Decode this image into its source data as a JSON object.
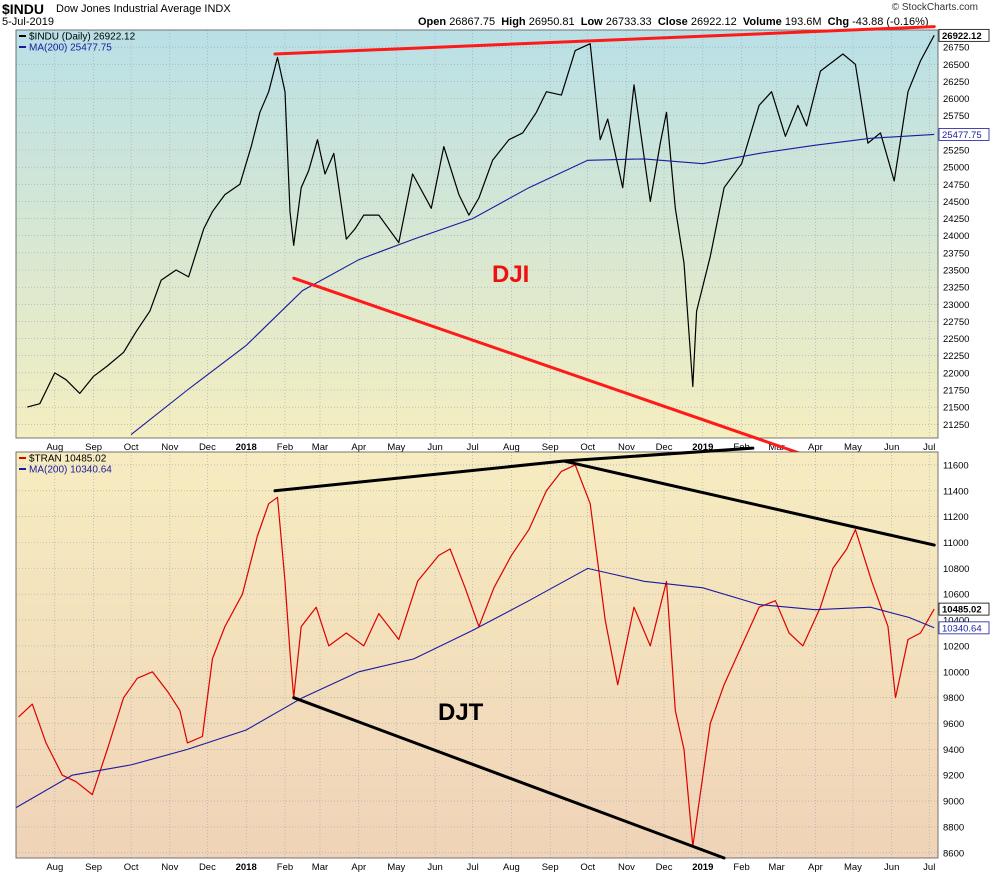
{
  "header": {
    "symbol": "$INDU",
    "name": "Dow Jones Industrial Average  INDX",
    "date": "5-Jul-2019",
    "open_label": "Open",
    "open": "26867.75",
    "high_label": "High",
    "high": "26950.81",
    "low_label": "Low",
    "low": "26733.33",
    "close_label": "Close",
    "close": "26922.12",
    "volume_label": "Volume",
    "volume": "193.6M",
    "chg_label": "Chg",
    "chg": "-43.88 (-0.16%)",
    "source": "© StockCharts.com"
  },
  "colors": {
    "price_top": "#000000",
    "price_bottom": "#dd0000",
    "ma": "#1a1aa0",
    "trend_top": "#ff1a1a",
    "trend_bottom": "#000000",
    "grid": "#9aa8b8"
  },
  "chart_data": [
    {
      "type": "line",
      "legend": [
        "$INDU (Daily) 26922.12",
        "MA(200) 25477.75"
      ],
      "annotation": "DJI",
      "last_value_label": "26922.12",
      "ma_value_label": "25477.75",
      "ylim": [
        21050,
        27000
      ],
      "yticks": [
        21250,
        21500,
        21750,
        22000,
        22250,
        22500,
        22750,
        23000,
        23250,
        23500,
        23750,
        24000,
        24250,
        24500,
        24750,
        25000,
        25250,
        25500,
        25750,
        26000,
        26250,
        26500,
        26750
      ],
      "month_labels": [
        "Aug",
        "Sep",
        "Oct",
        "Nov",
        "Dec",
        "2018",
        "Feb",
        "Mar",
        "Apr",
        "May",
        "Jun",
        "Jul",
        "Aug",
        "Sep",
        "Oct",
        "Nov",
        "Dec",
        "2019",
        "Feb",
        "Mar",
        "Apr",
        "May",
        "Jun",
        "Jul"
      ],
      "series": [
        {
          "name": "$INDU",
          "x": [
            "2017-07-10",
            "2017-07-20",
            "2017-08-01",
            "2017-08-10",
            "2017-08-21",
            "2017-09-01",
            "2017-09-12",
            "2017-09-25",
            "2017-10-05",
            "2017-10-16",
            "2017-10-25",
            "2017-11-06",
            "2017-11-16",
            "2017-11-28",
            "2017-12-05",
            "2017-12-15",
            "2017-12-27",
            "2018-01-05",
            "2018-01-12",
            "2018-01-19",
            "2018-01-26",
            "2018-02-01",
            "2018-02-05",
            "2018-02-08",
            "2018-02-14",
            "2018-02-20",
            "2018-02-27",
            "2018-03-05",
            "2018-03-12",
            "2018-03-22",
            "2018-03-29",
            "2018-04-05",
            "2018-04-17",
            "2018-05-03",
            "2018-05-14",
            "2018-05-29",
            "2018-06-08",
            "2018-06-20",
            "2018-06-28",
            "2018-07-06",
            "2018-07-17",
            "2018-07-30",
            "2018-08-10",
            "2018-08-21",
            "2018-08-29",
            "2018-09-10",
            "2018-09-21",
            "2018-10-03",
            "2018-10-11",
            "2018-10-17",
            "2018-10-29",
            "2018-11-07",
            "2018-11-20",
            "2018-11-28",
            "2018-12-03",
            "2018-12-10",
            "2018-12-17",
            "2018-12-24",
            "2018-12-27",
            "2019-01-07",
            "2019-01-18",
            "2019-02-01",
            "2019-02-15",
            "2019-02-25",
            "2019-03-08",
            "2019-03-18",
            "2019-03-25",
            "2019-04-05",
            "2019-04-23",
            "2019-05-03",
            "2019-05-13",
            "2019-05-23",
            "2019-06-03",
            "2019-06-14",
            "2019-06-24",
            "2019-07-05"
          ],
          "values": [
            21500,
            21550,
            22000,
            21900,
            21700,
            21950,
            22100,
            22300,
            22600,
            22900,
            23350,
            23500,
            23400,
            24100,
            24350,
            24600,
            24750,
            25300,
            25800,
            26100,
            26600,
            26100,
            24350,
            23860,
            24700,
            24950,
            25400,
            24900,
            25200,
            23950,
            24100,
            24300,
            24300,
            23900,
            24900,
            24400,
            25300,
            24600,
            24300,
            24550,
            25100,
            25400,
            25500,
            25800,
            26100,
            26050,
            26700,
            26800,
            25400,
            25700,
            24700,
            26200,
            24500,
            25350,
            25800,
            24400,
            23600,
            21800,
            22900,
            23700,
            24700,
            25050,
            25900,
            26100,
            25450,
            25900,
            25600,
            26400,
            26650,
            26500,
            25350,
            25500,
            24800,
            26100,
            26550,
            26922
          ]
        },
        {
          "name": "MA(200)",
          "x": [
            "2017-10-01",
            "2017-11-15",
            "2018-01-01",
            "2018-02-15",
            "2018-04-01",
            "2018-05-15",
            "2018-07-01",
            "2018-08-15",
            "2018-10-01",
            "2018-11-15",
            "2019-01-01",
            "2019-02-15",
            "2019-04-01",
            "2019-05-15",
            "2019-07-05"
          ],
          "values": [
            21100,
            21750,
            22400,
            23200,
            23650,
            23950,
            24250,
            24700,
            25100,
            25120,
            25050,
            25200,
            25320,
            25420,
            25477
          ]
        }
      ],
      "trendlines": [
        {
          "x": [
            "2018-01-24",
            "2019-07-05"
          ],
          "values": [
            26650,
            27050
          ]
        },
        {
          "x": [
            "2018-02-08",
            "2019-07-05"
          ],
          "values": [
            23380,
            20150
          ]
        }
      ]
    },
    {
      "type": "line",
      "legend": [
        "$TRAN 10485.02",
        "MA(200) 10340.64"
      ],
      "annotation": "DJT",
      "last_value_label": "10485.02",
      "ma_value_label": "10340.64",
      "ylim": [
        8560,
        11700
      ],
      "yticks": [
        8600,
        8800,
        9000,
        9200,
        9400,
        9600,
        9800,
        10000,
        10200,
        10400,
        10600,
        10800,
        11000,
        11200,
        11400,
        11600
      ],
      "month_labels": [
        "Aug",
        "Sep",
        "Oct",
        "Nov",
        "Dec",
        "2018",
        "Feb",
        "Mar",
        "Apr",
        "May",
        "Jun",
        "Jul",
        "Aug",
        "Sep",
        "Oct",
        "Nov",
        "Dec",
        "2019",
        "Feb",
        "Mar",
        "Apr",
        "May",
        "Jun",
        "Jul"
      ],
      "series": [
        {
          "name": "$TRAN",
          "x": [
            "2017-07-03",
            "2017-07-14",
            "2017-07-25",
            "2017-08-07",
            "2017-08-18",
            "2017-08-31",
            "2017-09-12",
            "2017-09-25",
            "2017-10-06",
            "2017-10-18",
            "2017-10-30",
            "2017-11-09",
            "2017-11-15",
            "2017-11-27",
            "2017-12-05",
            "2017-12-15",
            "2017-12-29",
            "2018-01-10",
            "2018-01-19",
            "2018-01-26",
            "2018-02-01",
            "2018-02-05",
            "2018-02-08",
            "2018-02-14",
            "2018-02-26",
            "2018-03-08",
            "2018-03-22",
            "2018-04-05",
            "2018-04-17",
            "2018-05-03",
            "2018-05-18",
            "2018-06-04",
            "2018-06-13",
            "2018-06-25",
            "2018-07-06",
            "2018-07-18",
            "2018-08-01",
            "2018-08-15",
            "2018-08-29",
            "2018-09-10",
            "2018-09-21",
            "2018-10-03",
            "2018-10-15",
            "2018-10-25",
            "2018-11-07",
            "2018-11-20",
            "2018-12-03",
            "2018-12-10",
            "2018-12-17",
            "2018-12-24",
            "2019-01-07",
            "2019-01-18",
            "2019-02-01",
            "2019-02-15",
            "2019-02-28",
            "2019-03-11",
            "2019-03-22",
            "2019-04-05",
            "2019-04-15",
            "2019-04-26",
            "2019-05-03",
            "2019-05-16",
            "2019-05-29",
            "2019-06-04",
            "2019-06-14",
            "2019-06-24",
            "2019-07-05"
          ],
          "values": [
            9650,
            9750,
            9450,
            9200,
            9150,
            9050,
            9400,
            9800,
            9950,
            10000,
            9850,
            9700,
            9450,
            9500,
            10100,
            10350,
            10600,
            11050,
            11300,
            11350,
            10700,
            10150,
            9800,
            10350,
            10500,
            10200,
            10300,
            10200,
            10450,
            10250,
            10700,
            10900,
            10950,
            10650,
            10350,
            10650,
            10900,
            11100,
            11400,
            11550,
            11600,
            11300,
            10400,
            9900,
            10500,
            10200,
            10700,
            9700,
            9400,
            8650,
            9600,
            9900,
            10200,
            10500,
            10550,
            10300,
            10200,
            10500,
            10800,
            10950,
            11100,
            10700,
            10350,
            9800,
            10250,
            10300,
            10485
          ]
        },
        {
          "name": "MA(200)",
          "x": [
            "2017-07-01",
            "2017-08-15",
            "2017-10-01",
            "2017-11-15",
            "2018-01-01",
            "2018-02-15",
            "2018-04-01",
            "2018-05-15",
            "2018-07-01",
            "2018-08-15",
            "2018-10-01",
            "2018-11-15",
            "2019-01-01",
            "2019-02-15",
            "2019-04-01",
            "2019-05-15",
            "2019-06-15",
            "2019-07-05"
          ],
          "values": [
            8950,
            9200,
            9280,
            9400,
            9550,
            9800,
            10000,
            10100,
            10320,
            10550,
            10800,
            10700,
            10650,
            10520,
            10480,
            10500,
            10420,
            10340
          ]
        }
      ],
      "trendlines": [
        {
          "x": [
            "2018-01-24",
            "2018-09-12"
          ],
          "values": [
            11400,
            11630
          ]
        },
        {
          "x": [
            "2018-09-12",
            "2019-02-10"
          ],
          "values": [
            11630,
            11730
          ]
        },
        {
          "x": [
            "2018-09-12",
            "2019-07-05"
          ],
          "values": [
            11630,
            10980
          ]
        },
        {
          "x": [
            "2018-02-08",
            "2019-01-18"
          ],
          "values": [
            9800,
            8560
          ]
        }
      ]
    }
  ]
}
